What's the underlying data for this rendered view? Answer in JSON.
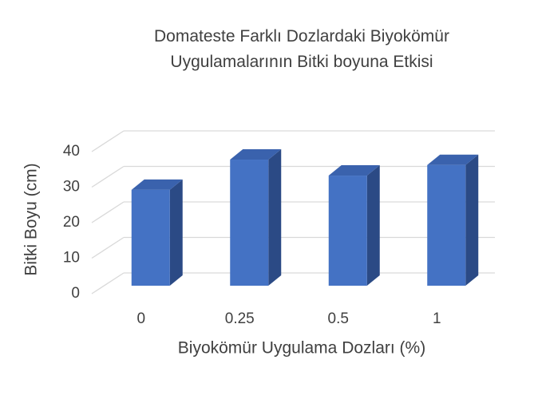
{
  "chart_data": {
    "type": "bar3d",
    "title": "Domateste Farklı Dozlardaki Biyokömür Uygulamalarının Bitki boyuna Etkisi",
    "x_label": "Biyokömür Uygulama Dozları (%)",
    "y_label": "Bitki Boyu (cm)",
    "categories": [
      "0",
      "0.25",
      "0.5",
      "1"
    ],
    "values": [
      27,
      35.5,
      31,
      34
    ],
    "color": "#4472c4",
    "ylim": [
      0,
      40
    ],
    "yticks": [
      0,
      10,
      20,
      30,
      40
    ],
    "grid": true
  }
}
